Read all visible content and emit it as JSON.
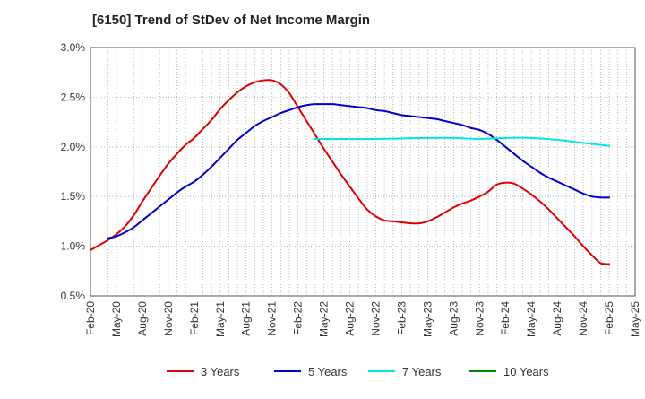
{
  "chart_data": {
    "type": "line",
    "title": "[6150]  Trend of StDev of Net Income Margin",
    "xlabel": "",
    "ylabel": "",
    "x_ticks": [
      "Feb-20",
      "May-20",
      "Aug-20",
      "Nov-20",
      "Feb-21",
      "May-21",
      "Aug-21",
      "Nov-21",
      "Feb-22",
      "May-22",
      "Aug-22",
      "Nov-22",
      "Feb-23",
      "May-23",
      "Aug-23",
      "Nov-23",
      "Feb-24",
      "May-24",
      "Aug-24",
      "Nov-24",
      "Feb-25",
      "May-25"
    ],
    "y_ticks": [
      "0.5%",
      "1.0%",
      "1.5%",
      "2.0%",
      "2.5%",
      "3.0%"
    ],
    "ylim": [
      0.5,
      3.0
    ],
    "grid": true,
    "legend_position": "bottom",
    "series": [
      {
        "name": "3 Years",
        "color": "#dd0000",
        "x": [
          "Feb-20",
          "Mar-20",
          "Apr-20",
          "May-20",
          "Jun-20",
          "Jul-20",
          "Aug-20",
          "Sep-20",
          "Oct-20",
          "Nov-20",
          "Dec-20",
          "Jan-21",
          "Feb-21",
          "Mar-21",
          "Apr-21",
          "May-21",
          "Jun-21",
          "Jul-21",
          "Aug-21",
          "Sep-21",
          "Oct-21",
          "Nov-21",
          "Dec-21",
          "Jan-22",
          "Feb-22",
          "Mar-22",
          "Apr-22",
          "May-22",
          "Jun-22",
          "Jul-22",
          "Aug-22",
          "Sep-22",
          "Oct-22",
          "Nov-22",
          "Dec-22",
          "Jan-23",
          "Feb-23",
          "Mar-23",
          "Apr-23",
          "May-23",
          "Jun-23",
          "Jul-23",
          "Aug-23",
          "Sep-23",
          "Oct-23",
          "Nov-23",
          "Dec-23",
          "Jan-24",
          "Feb-24",
          "Mar-24",
          "Apr-24",
          "May-24",
          "Jun-24",
          "Jul-24",
          "Aug-24",
          "Sep-24",
          "Oct-24",
          "Nov-24",
          "Dec-24",
          "Jan-25",
          "Feb-25"
        ],
        "values": [
          0.96,
          1.01,
          1.06,
          1.12,
          1.2,
          1.31,
          1.45,
          1.58,
          1.71,
          1.83,
          1.93,
          2.02,
          2.09,
          2.18,
          2.27,
          2.38,
          2.47,
          2.55,
          2.61,
          2.65,
          2.67,
          2.67,
          2.63,
          2.54,
          2.4,
          2.26,
          2.12,
          1.98,
          1.85,
          1.72,
          1.6,
          1.48,
          1.37,
          1.3,
          1.26,
          1.25,
          1.24,
          1.23,
          1.23,
          1.25,
          1.29,
          1.34,
          1.39,
          1.43,
          1.46,
          1.5,
          1.55,
          1.62,
          1.64,
          1.63,
          1.58,
          1.52,
          1.45,
          1.37,
          1.28,
          1.19,
          1.1,
          1.0,
          0.91,
          0.83,
          0.82
        ]
      },
      {
        "name": "5 Years",
        "color": "#0000cc",
        "x": [
          "Apr-20",
          "May-20",
          "Jun-20",
          "Jul-20",
          "Aug-20",
          "Sep-20",
          "Oct-20",
          "Nov-20",
          "Dec-20",
          "Jan-21",
          "Feb-21",
          "Mar-21",
          "Apr-21",
          "May-21",
          "Jun-21",
          "Jul-21",
          "Aug-21",
          "Sep-21",
          "Oct-21",
          "Nov-21",
          "Dec-21",
          "Jan-22",
          "Feb-22",
          "Mar-22",
          "Apr-22",
          "May-22",
          "Jun-22",
          "Jul-22",
          "Aug-22",
          "Sep-22",
          "Oct-22",
          "Nov-22",
          "Dec-22",
          "Jan-23",
          "Feb-23",
          "Mar-23",
          "Apr-23",
          "May-23",
          "Jun-23",
          "Jul-23",
          "Aug-23",
          "Sep-23",
          "Oct-23",
          "Nov-23",
          "Dec-23",
          "Jan-24",
          "Feb-24",
          "Mar-24",
          "Apr-24",
          "May-24",
          "Jun-24",
          "Jul-24",
          "Aug-24",
          "Sep-24",
          "Oct-24",
          "Nov-24",
          "Dec-24",
          "Jan-25",
          "Feb-25"
        ],
        "values": [
          1.08,
          1.1,
          1.14,
          1.19,
          1.26,
          1.33,
          1.4,
          1.47,
          1.54,
          1.6,
          1.65,
          1.72,
          1.8,
          1.89,
          1.98,
          2.07,
          2.14,
          2.21,
          2.26,
          2.3,
          2.34,
          2.37,
          2.4,
          2.42,
          2.43,
          2.43,
          2.43,
          2.42,
          2.41,
          2.4,
          2.39,
          2.37,
          2.36,
          2.34,
          2.32,
          2.31,
          2.3,
          2.29,
          2.28,
          2.26,
          2.24,
          2.22,
          2.19,
          2.17,
          2.13,
          2.07,
          2.0,
          1.93,
          1.86,
          1.8,
          1.74,
          1.69,
          1.65,
          1.61,
          1.57,
          1.53,
          1.5,
          1.49,
          1.49
        ]
      },
      {
        "name": "7 Years",
        "color": "#00e5e5",
        "x": [
          "Apr-22",
          "May-22",
          "Aug-22",
          "Nov-22",
          "Feb-23",
          "May-23",
          "Aug-23",
          "Nov-23",
          "Feb-24",
          "May-24",
          "Aug-24",
          "Nov-24",
          "Feb-25"
        ],
        "values": [
          2.08,
          2.08,
          2.08,
          2.08,
          2.085,
          2.09,
          2.09,
          2.08,
          2.09,
          2.09,
          2.07,
          2.04,
          2.01
        ]
      },
      {
        "name": "10 Years",
        "color": "#008800",
        "x": [],
        "values": []
      }
    ]
  }
}
